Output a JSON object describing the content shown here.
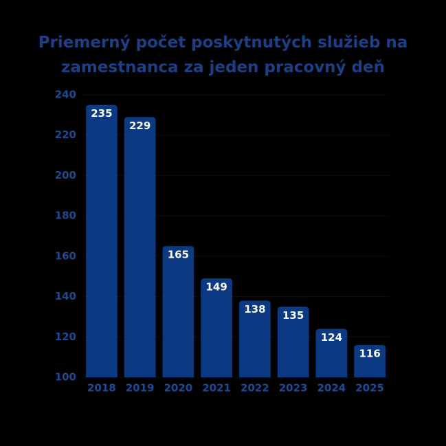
{
  "chart_data": {
    "type": "bar",
    "title": "Priemerný počet poskytnutých služieb na zamestnanca za jeden pracovný deň",
    "categories": [
      "2018",
      "2019",
      "2020",
      "2021",
      "2022",
      "2023",
      "2024",
      "2025"
    ],
    "values": [
      235,
      229,
      165,
      149,
      138,
      135,
      124,
      116
    ],
    "color": "#0b3a82",
    "ylim": [
      100,
      240
    ],
    "yticks": [
      100,
      120,
      140,
      160,
      180,
      200,
      220,
      240
    ],
    "grid": true
  }
}
